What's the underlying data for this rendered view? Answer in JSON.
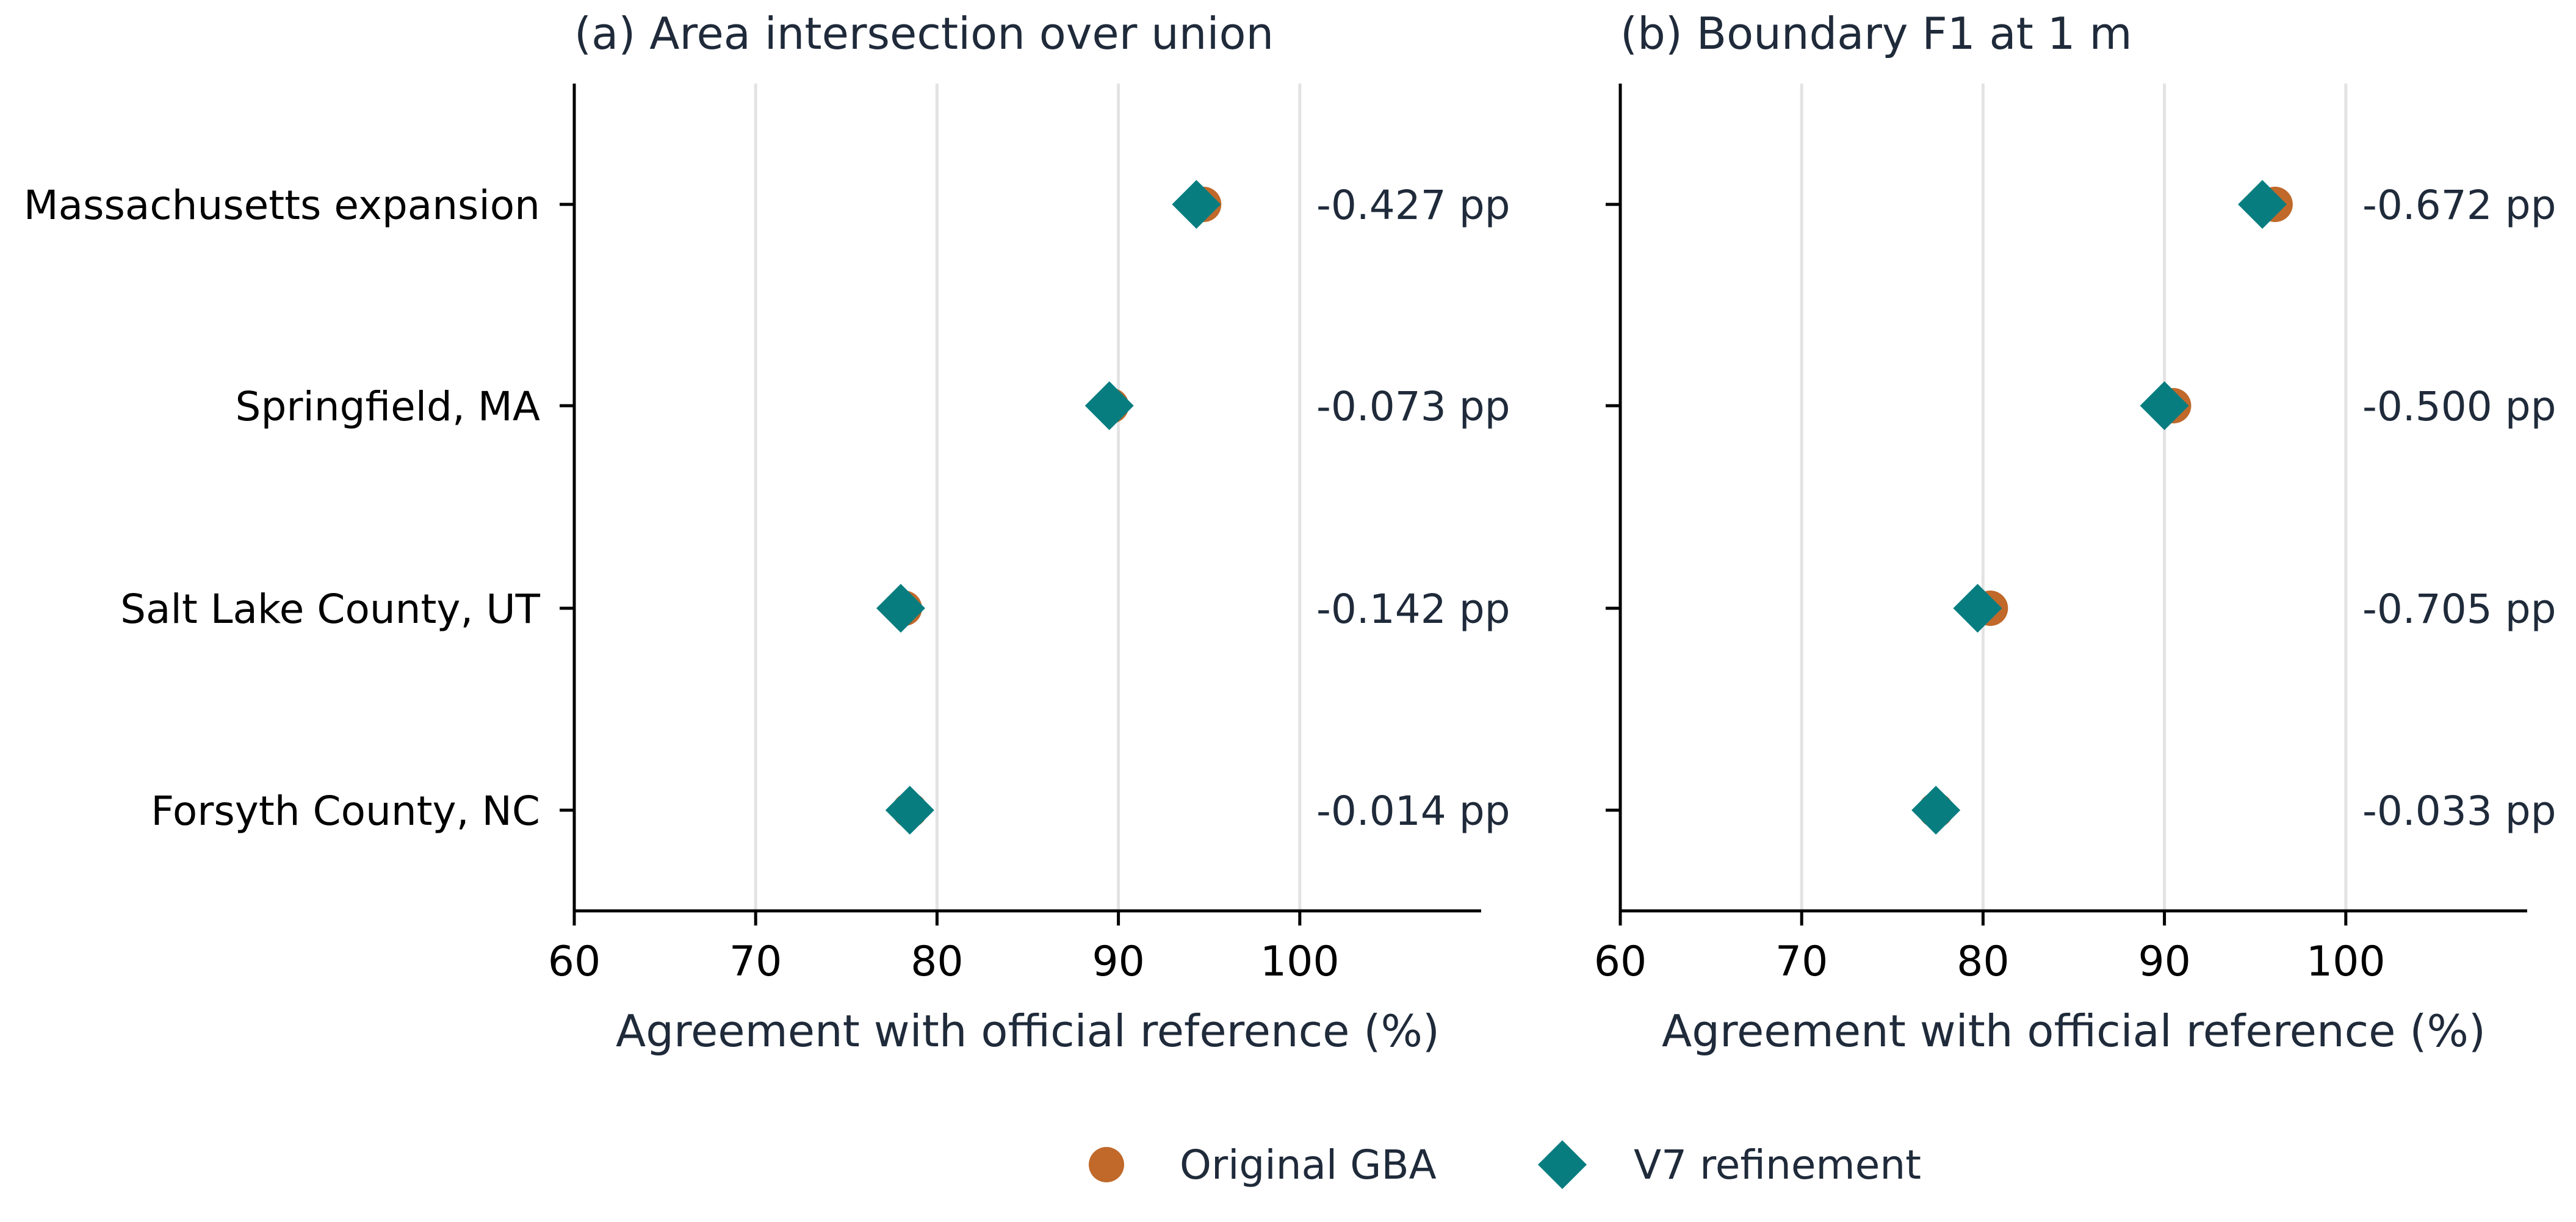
{
  "chart_data": {
    "type": "dot",
    "legend_placement": "bottom-center",
    "legend": [
      {
        "label": "Original GBA",
        "marker": "circle",
        "color": "#c0692a"
      },
      {
        "label": "V7 refinement",
        "marker": "diamond",
        "color": "#087d80"
      }
    ],
    "categories": [
      "Massachusetts expansion",
      "Springfield, MA",
      "Salt Lake County, UT",
      "Forsyth County, NC"
    ],
    "xlim": [
      60,
      110
    ],
    "xticks": [
      "60",
      "70",
      "80",
      "90",
      "100"
    ],
    "xtick_values": [
      60,
      70,
      80,
      90,
      100
    ],
    "grid": "vertical",
    "panels": [
      {
        "title": "(a) Area intersection over union",
        "xlabel": "Agreement with official reference (%)",
        "series": [
          {
            "name": "Original GBA",
            "values": [
              94.7,
              89.6,
              78.2,
              78.5
            ]
          },
          {
            "name": "V7 refinement",
            "values": [
              94.3,
              89.5,
              78.0,
              78.5
            ]
          }
        ],
        "annotations": [
          "-0.427 pp",
          "-0.073 pp",
          "-0.142 pp",
          "-0.014 pp"
        ]
      },
      {
        "title": "(b) Boundary F1 at 1 m",
        "xlabel": "Agreement with official reference (%)",
        "series": [
          {
            "name": "Original GBA",
            "values": [
              96.1,
              90.5,
              80.4,
              77.4
            ]
          },
          {
            "name": "V7 refinement",
            "values": [
              95.4,
              90.0,
              79.7,
              77.4
            ]
          }
        ],
        "annotations": [
          "-0.672 pp",
          "-0.500 pp",
          "-0.705 pp",
          "-0.033 pp"
        ]
      }
    ]
  }
}
